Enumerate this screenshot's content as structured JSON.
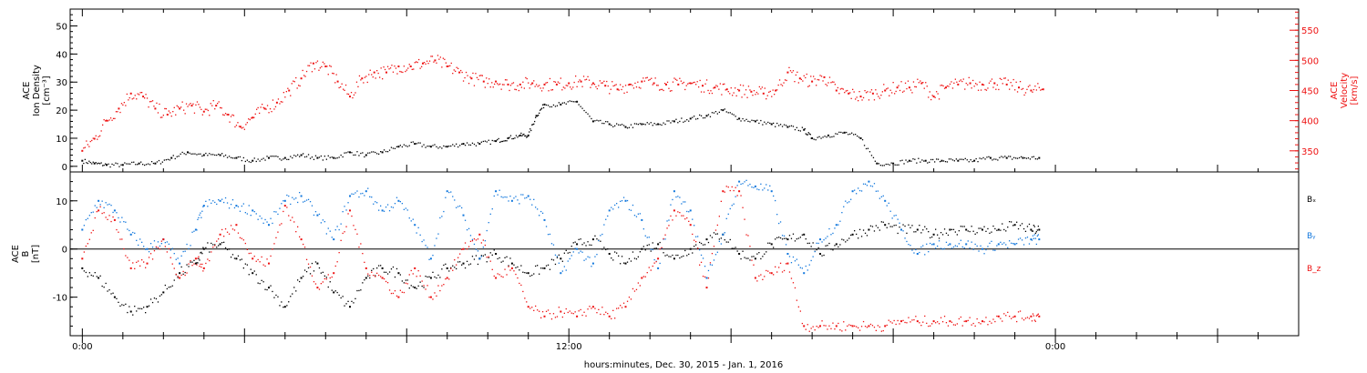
{
  "xlabel": "hours:minutes, Dec. 30, 2015 - Jan.  1, 2016",
  "x_tick_labels": [
    "0:00",
    "12:00",
    "0:00"
  ],
  "colors": {
    "black": "#000000",
    "red": "#ee1111",
    "blue": "#1177dd"
  },
  "chart_data": [
    {
      "type": "scatter",
      "panel": "top",
      "left_axis": {
        "label_lines": [
          "ACE",
          "Ion Density",
          "[cm⁻³]"
        ],
        "ylim": [
          -2,
          56
        ],
        "ticks": [
          0,
          10,
          20,
          30,
          40,
          50
        ]
      },
      "right_axis": {
        "label_lines": [
          "ACE",
          "Velocity",
          "[km/s]"
        ],
        "ylim": [
          315,
          585
        ],
        "ticks": [
          350,
          400,
          450,
          500,
          550
        ]
      },
      "x_unit": "hours since Dec. 30, 2015 0:00",
      "xlim": [
        -0.3,
        30
      ],
      "series": [
        {
          "color": "#000000",
          "axis": "left",
          "x": [
            0,
            0.3,
            0.6,
            1,
            1.4,
            1.8,
            2.2,
            2.6,
            3,
            3.4,
            3.8,
            4.2,
            4.6,
            5,
            5.4,
            5.8,
            6.2,
            6.6,
            7,
            7.4,
            7.8,
            8.2,
            8.6,
            9,
            9.4,
            9.8,
            10.2,
            10.5,
            10.8,
            11,
            11.2,
            11.4,
            11.8,
            12.2,
            12.6,
            13,
            13.4,
            13.8,
            14.2,
            14.6,
            15,
            15.4,
            15.8,
            16.2,
            16.6,
            17,
            17.4,
            17.8,
            18,
            18.4,
            18.8,
            19.2,
            19.6,
            20,
            20.4,
            20.8,
            21.2,
            21.6,
            22,
            22.4,
            22.8,
            23.2,
            23.6
          ],
          "y": [
            2,
            1,
            0.5,
            0.5,
            1,
            1,
            3,
            5,
            4,
            4,
            3,
            2,
            3,
            3,
            4,
            3,
            3,
            5,
            4,
            5,
            7,
            8,
            7,
            7,
            8,
            8,
            9,
            10,
            11,
            11,
            18,
            22,
            22,
            23,
            16,
            15,
            14,
            15,
            15,
            16,
            17,
            18,
            20,
            17,
            16,
            15,
            14,
            13,
            10,
            11,
            12,
            10,
            1,
            1,
            2,
            2,
            2,
            2,
            2,
            3,
            3,
            3,
            3
          ]
        },
        {
          "color": "#ee1111",
          "axis": "right",
          "x": [
            0,
            0.3,
            0.6,
            0.9,
            1.2,
            1.5,
            1.8,
            2.1,
            2.4,
            2.7,
            3,
            3.3,
            3.6,
            3.9,
            4.2,
            4.5,
            4.8,
            5.1,
            5.4,
            5.7,
            6,
            6.3,
            6.6,
            6.9,
            7.2,
            7.5,
            7.8,
            8.1,
            8.4,
            8.7,
            9,
            9.3,
            9.6,
            9.9,
            10.2,
            10.5,
            10.8,
            11.1,
            11.4,
            11.7,
            12,
            12.3,
            12.6,
            12.9,
            13.2,
            13.5,
            13.8,
            14.1,
            14.4,
            14.7,
            15,
            15.3,
            15.6,
            15.9,
            16.2,
            16.5,
            16.8,
            17.1,
            17.4,
            17.7,
            18,
            18.3,
            18.6,
            18.9,
            19.2,
            19.5,
            19.8,
            20.1,
            20.4,
            20.7,
            21,
            21.3,
            21.6,
            21.9,
            22.2,
            22.5,
            22.8,
            23.1,
            23.4,
            23.7
          ],
          "y": [
            350,
            370,
            400,
            420,
            445,
            440,
            420,
            410,
            420,
            425,
            415,
            425,
            410,
            390,
            405,
            420,
            430,
            450,
            470,
            495,
            490,
            465,
            440,
            470,
            480,
            480,
            490,
            490,
            495,
            500,
            490,
            480,
            470,
            465,
            465,
            460,
            460,
            462,
            460,
            460,
            462,
            465,
            462,
            458,
            452,
            460,
            465,
            462,
            460,
            460,
            462,
            458,
            455,
            452,
            450,
            448,
            445,
            450,
            480,
            470,
            465,
            472,
            450,
            445,
            440,
            445,
            450,
            455,
            455,
            462,
            440,
            455,
            460,
            462,
            460,
            462,
            460,
            455,
            450,
            452
          ]
        }
      ]
    },
    {
      "type": "scatter",
      "panel": "bottom",
      "left_axis": {
        "label_lines": [
          "ACE",
          "B",
          "[nT]"
        ],
        "ylim": [
          -18,
          16
        ],
        "ticks": [
          -10,
          0,
          10
        ]
      },
      "x_unit": "hours since Dec. 30, 2015 0:00",
      "xlim": [
        -0.3,
        30
      ],
      "legend": [
        "Bₓ",
        "Bᵧ",
        "B_z"
      ],
      "legend_placement": "right",
      "series": [
        {
          "name": "Bₓ",
          "color": "#000000",
          "x": [
            0,
            0.4,
            0.8,
            1.2,
            1.6,
            2,
            2.4,
            2.8,
            3,
            3.4,
            3.8,
            4.2,
            4.6,
            5,
            5.4,
            5.8,
            6.2,
            6.6,
            7,
            7.4,
            7.8,
            8.2,
            8.6,
            9,
            9.4,
            9.8,
            10.2,
            10.6,
            11,
            11.4,
            11.8,
            12.2,
            12.6,
            13,
            13.4,
            13.8,
            14.2,
            14.6,
            15,
            15.4,
            15.8,
            16.2,
            16.6,
            17,
            17.4,
            17.8,
            18.2,
            18.6,
            19,
            19.4,
            19.8,
            20.2,
            20.6,
            21,
            21.4,
            21.8,
            22.2,
            22.6,
            23,
            23.4,
            23.6
          ],
          "y": [
            -4,
            -6,
            -10,
            -13,
            -12,
            -9,
            -5,
            -3,
            0,
            1,
            -2,
            -5,
            -8,
            -12,
            -6,
            -3,
            -9,
            -12,
            -6,
            -4,
            -5,
            -8,
            -6,
            -4,
            -3,
            -2,
            -1,
            -3,
            -5,
            -4,
            -2,
            1,
            2,
            -1,
            -3,
            0,
            1,
            -2,
            0,
            2,
            3,
            -1,
            -2,
            1,
            2,
            3,
            -1,
            1,
            3,
            4,
            5,
            4,
            4,
            3,
            4,
            4,
            4,
            4,
            5,
            4,
            4
          ]
        },
        {
          "name": "Bᵧ",
          "color": "#1177dd",
          "x": [
            0,
            0.4,
            0.8,
            1.2,
            1.6,
            2,
            2.4,
            2.8,
            3,
            3.4,
            3.8,
            4.2,
            4.6,
            5,
            5.4,
            5.8,
            6.2,
            6.6,
            7,
            7.4,
            7.8,
            8.2,
            8.6,
            9,
            9.4,
            9.8,
            10.2,
            10.6,
            11,
            11.4,
            11.8,
            12.2,
            12.6,
            13,
            13.4,
            13.8,
            14.2,
            14.6,
            15,
            15.4,
            15.8,
            16.2,
            16.6,
            17,
            17.4,
            17.8,
            18.2,
            18.6,
            19,
            19.4,
            19.8,
            20.2,
            20.6,
            21,
            21.4,
            21.8,
            22.2,
            22.6,
            23,
            23.4,
            23.6
          ],
          "y": [
            4,
            10,
            8,
            3,
            0,
            2,
            -3,
            4,
            9,
            10,
            9,
            8,
            5,
            10,
            11,
            7,
            2,
            11,
            12,
            8,
            10,
            5,
            -2,
            12,
            7,
            -2,
            12,
            10,
            11,
            6,
            -5,
            0,
            -3,
            8,
            10,
            6,
            -4,
            12,
            8,
            -6,
            3,
            14,
            13,
            12,
            -1,
            -5,
            2,
            5,
            12,
            14,
            10,
            4,
            -1,
            1,
            1,
            1,
            0,
            1,
            1,
            2,
            2
          ]
        },
        {
          "name": "B_z",
          "color": "#ee1111",
          "x": [
            0,
            0.4,
            0.8,
            1.2,
            1.6,
            2,
            2.4,
            2.8,
            3,
            3.4,
            3.8,
            4.2,
            4.6,
            5,
            5.4,
            5.8,
            6.2,
            6.6,
            7,
            7.4,
            7.8,
            8.2,
            8.6,
            9,
            9.4,
            9.8,
            10.2,
            10.6,
            11,
            11.4,
            11.8,
            12.2,
            12.6,
            13,
            13.4,
            13.8,
            14.2,
            14.6,
            15,
            15.4,
            15.8,
            16.2,
            16.6,
            17,
            17.4,
            17.8,
            18.2,
            18.6,
            19,
            19.4,
            19.8,
            20.2,
            20.6,
            21,
            21.4,
            21.8,
            22.2,
            22.6,
            23,
            23.4,
            23.6
          ],
          "y": [
            -2,
            8,
            6,
            -4,
            -3,
            2,
            -6,
            -2,
            -4,
            3,
            5,
            -2,
            -3,
            9,
            2,
            -8,
            -5,
            8,
            -4,
            -6,
            -10,
            -4,
            -10,
            -6,
            0,
            3,
            -6,
            -4,
            -12,
            -14,
            -13,
            -14,
            -12,
            -14,
            -12,
            -6,
            -2,
            8,
            5,
            -8,
            12,
            12,
            -6,
            -5,
            -3,
            -16,
            -16,
            -16,
            -16,
            -16,
            -16,
            -15,
            -15,
            -15,
            -15,
            -15,
            -15,
            -14,
            -14,
            -14,
            -14
          ]
        }
      ]
    }
  ]
}
